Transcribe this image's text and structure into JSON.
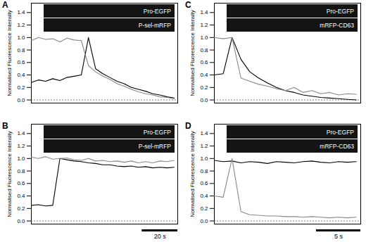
{
  "chart_data": [
    {
      "type": "line",
      "panel_label": "A",
      "channel_labels": [
        "Pro-EGFP",
        "P-sel-mRFP"
      ],
      "y_label": "Normalised Fluorescence Intensity",
      "x": [
        0,
        4,
        8,
        12,
        16,
        20,
        24,
        28,
        32,
        36,
        40,
        44,
        48,
        52,
        56,
        60,
        64,
        68,
        72,
        76,
        80
      ],
      "series": [
        {
          "color": "#000000",
          "values": [
            0.28,
            0.32,
            0.3,
            0.34,
            0.31,
            0.36,
            0.38,
            0.4,
            1.0,
            0.5,
            0.42,
            0.36,
            0.3,
            0.26,
            0.2,
            0.17,
            0.14,
            0.1,
            0.08,
            0.05,
            0.03
          ]
        },
        {
          "color": "#888888",
          "values": [
            0.95,
            1.0,
            0.97,
            0.98,
            0.93,
            0.99,
            0.96,
            0.95,
            0.55,
            0.45,
            0.38,
            0.33,
            0.26,
            0.22,
            0.17,
            0.13,
            0.1,
            0.08,
            0.05,
            0.04,
            0.02
          ]
        }
      ],
      "xlim": [
        0,
        82
      ],
      "ylim": [
        -0.05,
        1.55
      ],
      "yticks": [
        {
          "value": 0,
          "label": "0.0"
        },
        {
          "value": 0.2,
          "label": "0.2"
        },
        {
          "value": 0.4,
          "label": "0.4"
        },
        {
          "value": 0.6,
          "label": "0.6"
        },
        {
          "value": 0.8,
          "label": "0.8"
        },
        {
          "value": 1,
          "label": "1.0"
        },
        {
          "value": 1.2,
          "label": "1.2"
        },
        {
          "value": 1.4,
          "label": "1.4"
        }
      ],
      "tick_labels": "y"
    },
    {
      "type": "line",
      "panel_label": "C",
      "channel_labels": [
        "Pro-EGFP",
        "mRFP-CD63"
      ],
      "y_label": "Normalised Fluorescence Intensity",
      "x": [
        0,
        1,
        2,
        3,
        4,
        5,
        6,
        7,
        8,
        9,
        10,
        11,
        12,
        13,
        14,
        15,
        16
      ],
      "series": [
        {
          "color": "#000000",
          "values": [
            0.4,
            0.42,
            1.0,
            0.65,
            0.45,
            0.35,
            0.27,
            0.2,
            0.15,
            0.12,
            0.08,
            0.06,
            0.04,
            0.03,
            0.02,
            0.01,
            0.0
          ]
        },
        {
          "color": "#888888",
          "values": [
            1.0,
            0.98,
            1.0,
            0.35,
            0.3,
            0.25,
            0.22,
            0.18,
            0.15,
            0.2,
            0.12,
            0.15,
            0.1,
            0.12,
            0.08,
            0.1,
            0.09
          ]
        }
      ],
      "xlim": [
        0,
        16.5
      ],
      "ylim": [
        -0.05,
        1.55
      ],
      "yticks": [
        {
          "value": 0,
          "label": "0.0"
        },
        {
          "value": 0.2,
          "label": "0.2"
        },
        {
          "value": 0.4,
          "label": "0.4"
        },
        {
          "value": 0.6,
          "label": "0.6"
        },
        {
          "value": 0.8,
          "label": "0.8"
        },
        {
          "value": 1,
          "label": "1.0"
        },
        {
          "value": 1.2,
          "label": "1.2"
        },
        {
          "value": 1.4,
          "label": "1.4"
        }
      ],
      "tick_labels": "y"
    },
    {
      "type": "line",
      "panel_label": "B",
      "channel_labels": [
        "Pro-EGFP",
        "P-sel-mRFP"
      ],
      "y_label": "Normalised Fluorescence Intensity",
      "x": [
        0,
        4,
        8,
        12,
        16,
        20,
        24,
        28,
        32,
        36,
        40,
        44,
        48,
        52,
        56,
        60,
        64,
        68,
        72,
        76,
        80
      ],
      "series": [
        {
          "color": "#000000",
          "values": [
            0.25,
            0.26,
            0.24,
            0.25,
            1.0,
            0.98,
            0.96,
            0.95,
            0.93,
            0.92,
            0.9,
            0.9,
            0.88,
            0.87,
            0.88,
            0.86,
            0.87,
            0.85,
            0.86,
            0.85,
            0.86
          ]
        },
        {
          "color": "#888888",
          "values": [
            1.02,
            1.0,
            1.03,
            0.99,
            1.0,
            1.01,
            0.98,
            0.97,
            1.0,
            0.96,
            0.97,
            0.95,
            0.96,
            0.94,
            0.96,
            0.93,
            0.95,
            0.93,
            0.96,
            0.95,
            0.97
          ]
        }
      ],
      "xlim": [
        0,
        82
      ],
      "ylim": [
        -0.05,
        1.55
      ],
      "yticks": [
        {
          "value": 0,
          "label": "0.0"
        },
        {
          "value": 0.2,
          "label": "0.2"
        },
        {
          "value": 0.4,
          "label": "0.4"
        },
        {
          "value": 0.6,
          "label": "0.6"
        },
        {
          "value": 0.8,
          "label": "0.8"
        },
        {
          "value": 1,
          "label": "1.0"
        },
        {
          "value": 1.2,
          "label": "1.2"
        },
        {
          "value": 1.4,
          "label": "1.4"
        }
      ],
      "tick_labels": "y",
      "scale_bar": {
        "value": 20,
        "label": "20 s"
      }
    },
    {
      "type": "line",
      "panel_label": "D",
      "channel_labels": [
        "Pro-EGFP",
        "mRFP-CD63"
      ],
      "y_label": "Normalised Fluorescence Intensity",
      "x": [
        0,
        1,
        2,
        3,
        4,
        5,
        6,
        7,
        8,
        9,
        10,
        11,
        12,
        13,
        14,
        15,
        16
      ],
      "series": [
        {
          "color": "#000000",
          "values": [
            0.97,
            0.95,
            0.96,
            0.93,
            0.95,
            0.94,
            0.92,
            0.95,
            0.94,
            0.93,
            0.95,
            0.96,
            0.94,
            0.93,
            0.95,
            0.94,
            0.95
          ]
        },
        {
          "color": "#888888",
          "values": [
            0.4,
            0.38,
            1.0,
            0.15,
            0.1,
            0.09,
            0.08,
            0.08,
            0.07,
            0.07,
            0.06,
            0.07,
            0.06,
            0.05,
            0.06,
            0.05,
            0.06
          ]
        }
      ],
      "xlim": [
        0,
        16.5
      ],
      "ylim": [
        -0.05,
        1.55
      ],
      "yticks": [
        {
          "value": 0,
          "label": "0.0"
        },
        {
          "value": 0.2,
          "label": "0.2"
        },
        {
          "value": 0.4,
          "label": "0.4"
        },
        {
          "value": 0.6,
          "label": "0.6"
        },
        {
          "value": 0.8,
          "label": "0.8"
        },
        {
          "value": 1,
          "label": "1.0"
        },
        {
          "value": 1.2,
          "label": "1.2"
        },
        {
          "value": 1.4,
          "label": "1.4"
        }
      ],
      "tick_labels": "y",
      "scale_bar": {
        "value": 5,
        "label": "5 s"
      }
    }
  ]
}
